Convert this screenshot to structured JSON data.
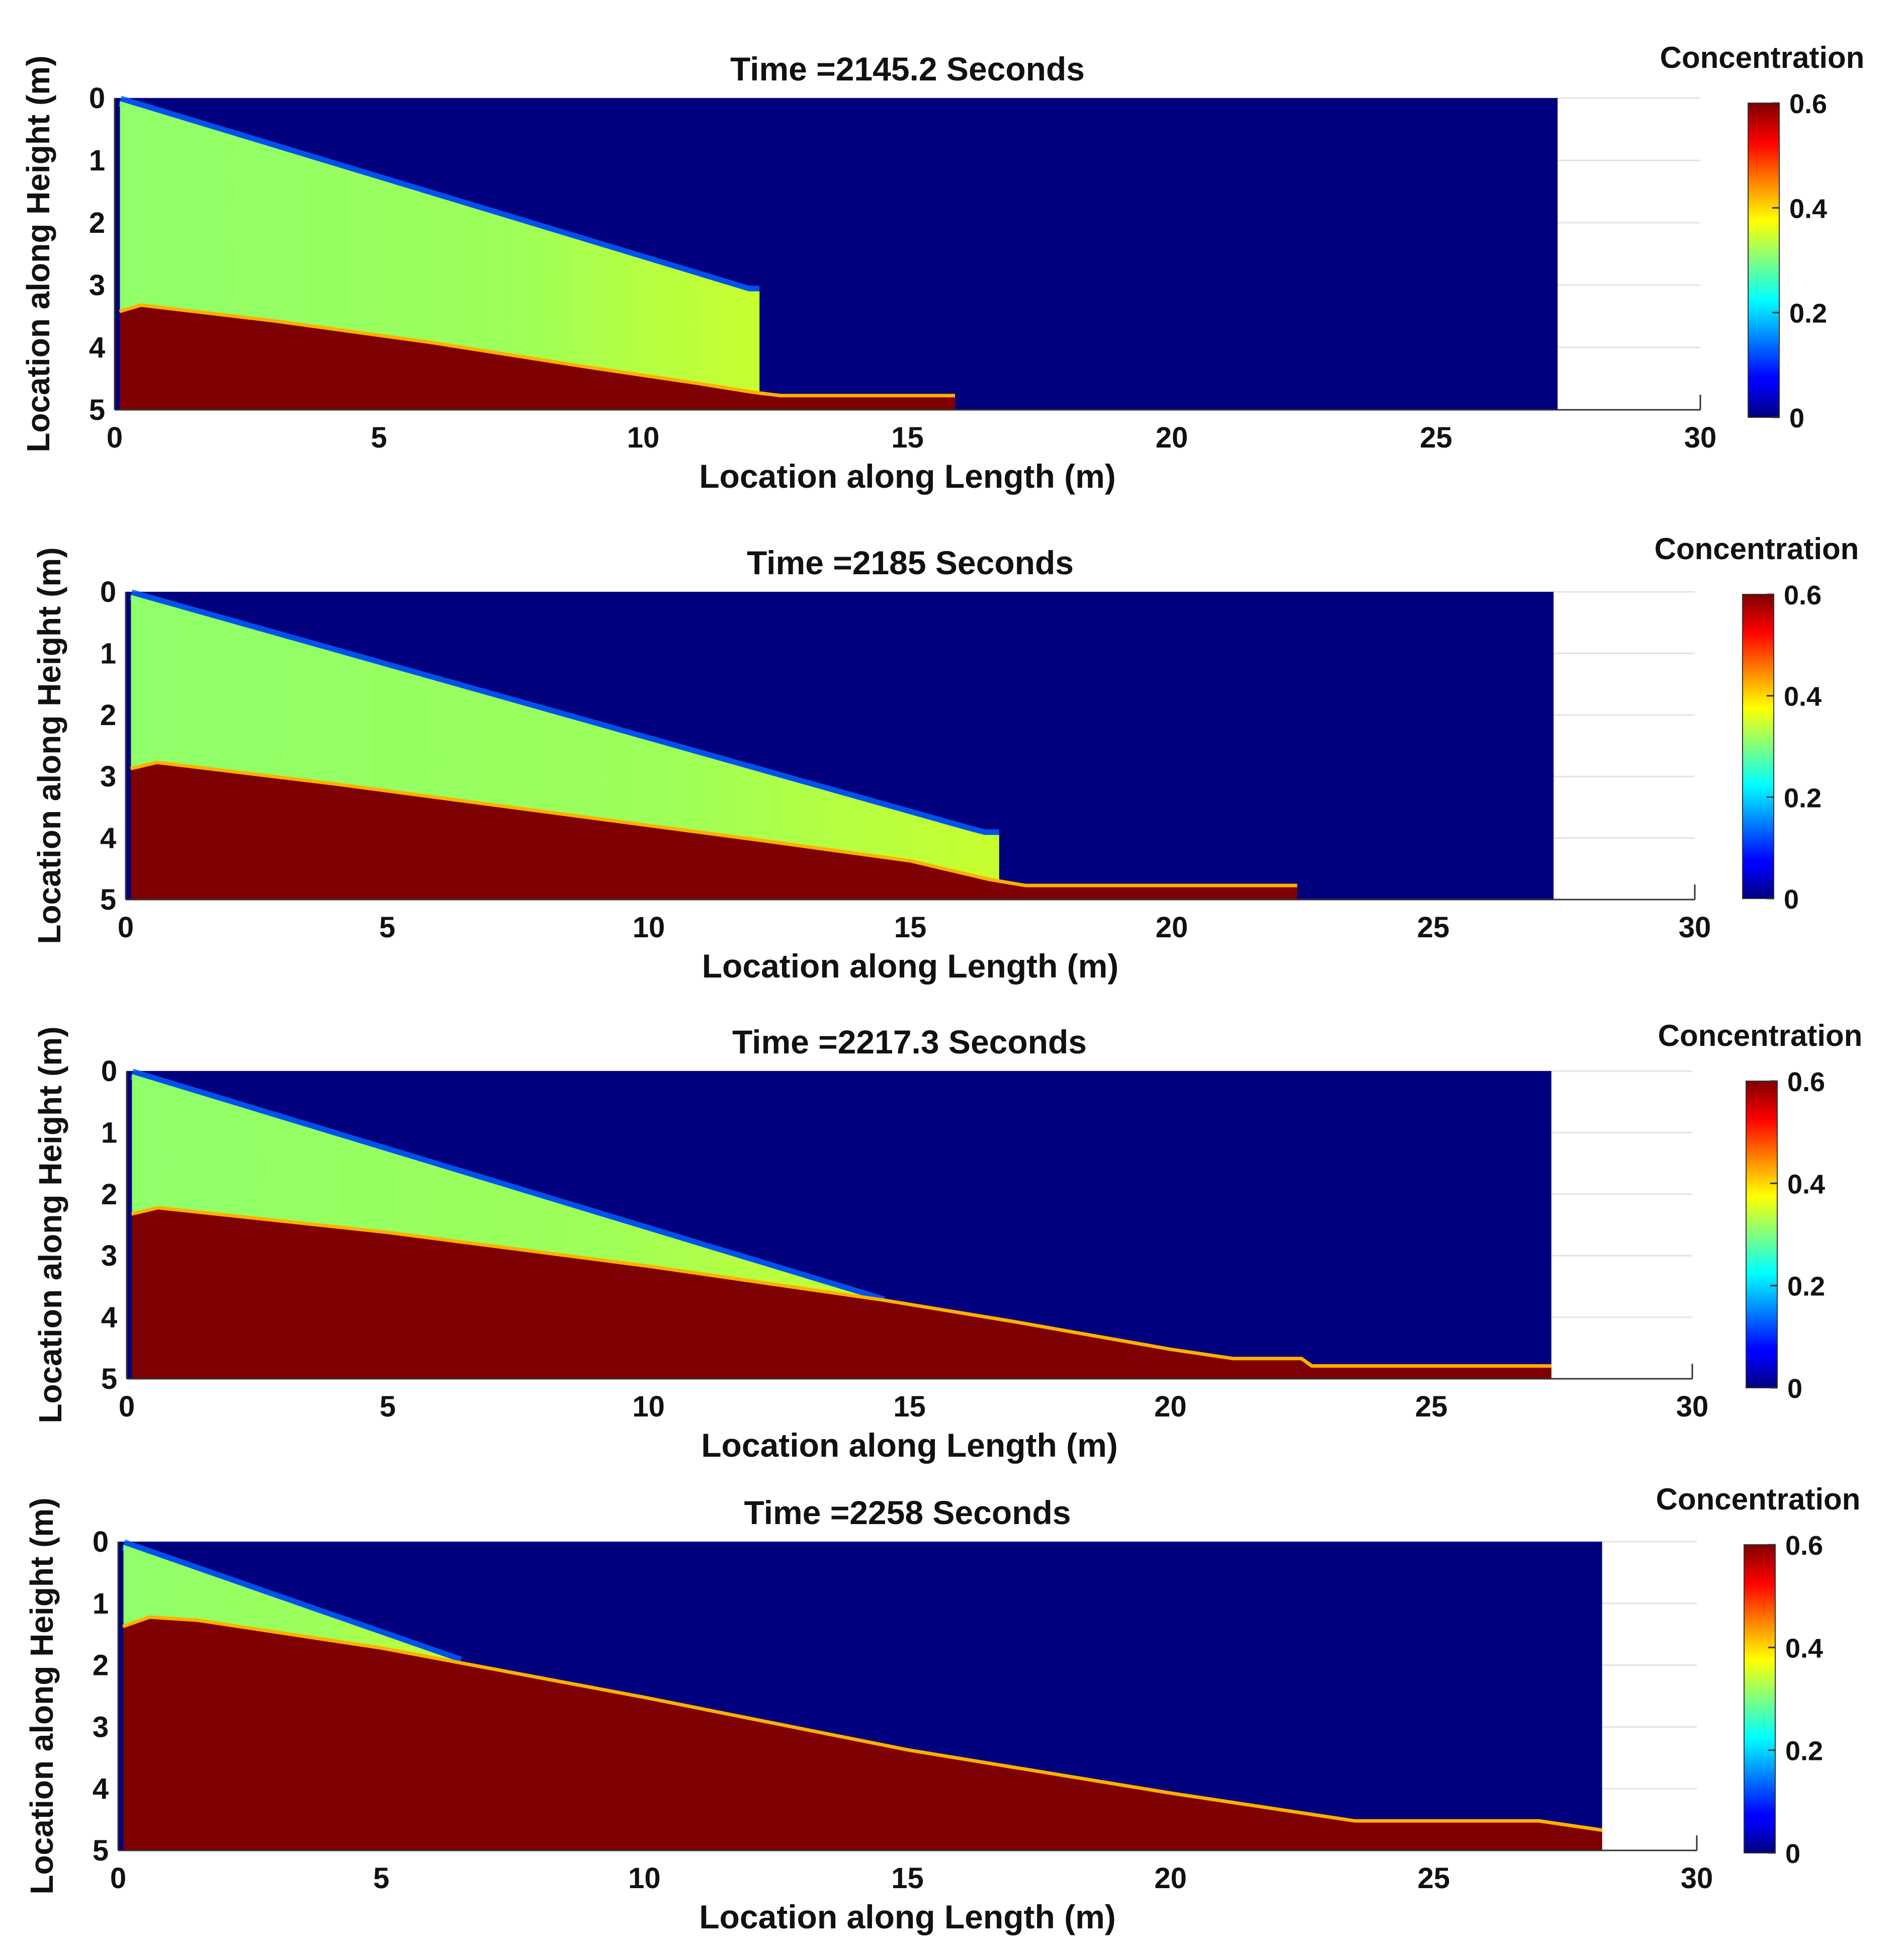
{
  "figure": {
    "colormap": "jet",
    "colors": {
      "sediment": "#7f0000",
      "water": "#00007f",
      "background": "#ffffff",
      "grid": "#e3e3e3",
      "axis": "#333333"
    }
  },
  "chart_data": [
    {
      "type": "heatmap",
      "title": "Time =2145.2 Seconds",
      "xlabel": "Location along Length (m)",
      "ylabel": "Location along Height (m)",
      "xlim": [
        0,
        30
      ],
      "ylim": [
        0,
        5
      ],
      "y_reversed": true,
      "xticks": [
        "0",
        "5",
        "10",
        "15",
        "20",
        "25",
        "30"
      ],
      "yticks": [
        "0",
        "1",
        "2",
        "3",
        "4",
        "5"
      ],
      "colorbar": {
        "label": "Concentration",
        "min": 0,
        "max": 0.6,
        "ticks": [
          "0",
          "0.2",
          "0.4",
          "0.6"
        ]
      },
      "domain_end_x": 27.3,
      "deposit_profile": {
        "x": [
          0.1,
          0.5,
          3.0,
          6.0,
          9.0,
          11.0,
          12.1,
          12.6,
          15.9
        ],
        "y": [
          3.45,
          3.35,
          3.6,
          3.95,
          4.35,
          4.6,
          4.75,
          4.8,
          4.8
        ]
      },
      "suspension_top": {
        "x": [
          0.1,
          12.0
        ],
        "y": [
          0.05,
          3.1
        ]
      },
      "suspension_front_x": 12.2,
      "suspension_concentration_range": [
        0.3,
        0.36
      ]
    },
    {
      "type": "heatmap",
      "title": "Time =2185 Seconds",
      "xlabel": "Location along Length (m)",
      "ylabel": "Location along Height (m)",
      "xlim": [
        0,
        30
      ],
      "ylim": [
        0,
        5
      ],
      "y_reversed": true,
      "xticks": [
        "0",
        "5",
        "10",
        "15",
        "20",
        "25",
        "30"
      ],
      "yticks": [
        "0",
        "1",
        "2",
        "3",
        "4",
        "5"
      ],
      "colorbar": {
        "label": "Concentration",
        "min": 0,
        "max": 0.6,
        "ticks": [
          "0",
          "0.2",
          "0.4",
          "0.6"
        ]
      },
      "domain_end_x": 27.3,
      "deposit_profile": {
        "x": [
          0.1,
          0.6,
          4.0,
          8.0,
          12.0,
          15.0,
          16.5,
          17.2,
          22.4
        ],
        "y": [
          2.9,
          2.8,
          3.15,
          3.6,
          4.05,
          4.4,
          4.7,
          4.8,
          4.8
        ]
      },
      "suspension_top": {
        "x": [
          0.1,
          16.4
        ],
        "y": [
          0.05,
          3.95
        ]
      },
      "suspension_front_x": 16.7,
      "suspension_concentration_range": [
        0.3,
        0.4
      ]
    },
    {
      "type": "heatmap",
      "title": "Time =2217.3 Seconds",
      "xlabel": "Location along Length (m)",
      "ylabel": "Location along Height (m)",
      "xlim": [
        0,
        30
      ],
      "ylim": [
        0,
        5
      ],
      "y_reversed": true,
      "xticks": [
        "0",
        "5",
        "10",
        "15",
        "20",
        "25",
        "30"
      ],
      "yticks": [
        "0",
        "1",
        "2",
        "3",
        "4",
        "5"
      ],
      "colorbar": {
        "label": "Concentration",
        "min": 0,
        "max": 0.6,
        "ticks": [
          "0",
          "0.2",
          "0.4",
          "0.6"
        ]
      },
      "domain_end_x": 27.3,
      "deposit_profile": {
        "x": [
          0.1,
          0.6,
          5.0,
          10.0,
          14.5,
          17.0,
          20.0,
          21.2,
          22.5,
          22.7,
          27.3
        ],
        "y": [
          2.35,
          2.25,
          2.65,
          3.2,
          3.75,
          4.1,
          4.55,
          4.7,
          4.7,
          4.82,
          4.82
        ]
      },
      "suspension_top": {
        "x": [
          0.1,
          14.5
        ],
        "y": [
          0.05,
          3.75
        ]
      },
      "suspension_front_x": 14.5,
      "suspension_concentration_range": [
        0.3,
        0.34
      ]
    },
    {
      "type": "heatmap",
      "title": "Time =2258 Seconds",
      "xlabel": "Location along Length (m)",
      "ylabel": "Location along Height (m)",
      "xlim": [
        0,
        30
      ],
      "ylim": [
        0,
        5
      ],
      "y_reversed": true,
      "xticks": [
        "0",
        "5",
        "10",
        "15",
        "20",
        "25",
        "30"
      ],
      "yticks": [
        "0",
        "1",
        "2",
        "3",
        "4",
        "5"
      ],
      "colorbar": {
        "label": "Concentration",
        "min": 0,
        "max": 0.6,
        "ticks": [
          "0",
          "0.2",
          "0.4",
          "0.6"
        ]
      },
      "domain_end_x": 28.2,
      "deposit_profile": {
        "x": [
          0.1,
          0.6,
          1.5,
          5.0,
          10.0,
          15.0,
          20.0,
          23.5,
          27.0,
          28.2
        ],
        "y": [
          1.4,
          1.25,
          1.3,
          1.75,
          2.55,
          3.4,
          4.1,
          4.55,
          4.55,
          4.7
        ]
      },
      "suspension_top": {
        "x": [
          0.1,
          6.5
        ],
        "y": [
          0.05,
          1.95
        ]
      },
      "suspension_front_x": 6.5,
      "suspension_concentration_range": [
        0.3,
        0.32
      ]
    }
  ]
}
